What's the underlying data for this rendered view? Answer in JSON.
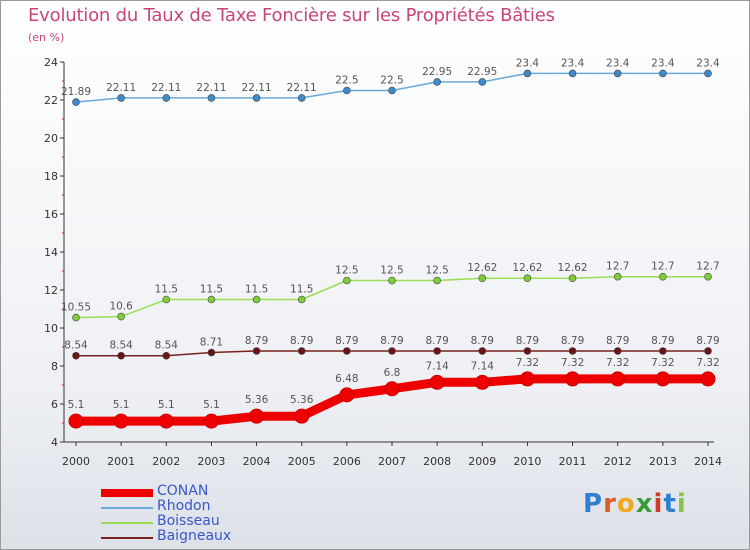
{
  "title": "Evolution du Taux de Taxe Foncière sur les Propriétés Bâties",
  "unit_label": "(en %)",
  "logo": {
    "text": "Proxiti",
    "letters": [
      {
        "ch": "P",
        "color": "#2f7fd1"
      },
      {
        "ch": "r",
        "color": "#e05a2a"
      },
      {
        "ch": "o",
        "color": "#f0a81c"
      },
      {
        "ch": "x",
        "color": "#3a9a3a"
      },
      {
        "ch": "i",
        "color": "#d23a2a"
      },
      {
        "ch": "t",
        "color": "#2f7fd1"
      },
      {
        "ch": "i",
        "color": "#8bc34a"
      }
    ]
  },
  "chart_data": {
    "type": "line",
    "title": "Evolution du Taux de Taxe Foncière sur les Propriétés Bâties",
    "ylabel": "(en %)",
    "xlabel": "",
    "x": [
      "2000",
      "2001",
      "2002",
      "2003",
      "2004",
      "2005",
      "2006",
      "2007",
      "2008",
      "2009",
      "2010",
      "2011",
      "2012",
      "2013",
      "2014"
    ],
    "ylim": [
      4,
      24
    ],
    "yticks": [
      "4",
      "6",
      "8",
      "10",
      "12",
      "14",
      "16",
      "18",
      "20",
      "22",
      "24"
    ],
    "grid": false,
    "legend_position": "bottom-left",
    "series": [
      {
        "name": "CONAN",
        "color": "#ee0000",
        "values": [
          5.1,
          5.1,
          5.1,
          5.1,
          5.36,
          5.36,
          6.48,
          6.8,
          7.14,
          7.14,
          7.32,
          7.32,
          7.32,
          7.32,
          7.32
        ],
        "labels": [
          "5.1",
          "5.1",
          "5.1",
          "5.1",
          "5.36",
          "5.36",
          "6.48",
          "6.8",
          "7.14",
          "7.14",
          "7.32",
          "7.32",
          "7.32",
          "7.32",
          "7.32"
        ]
      },
      {
        "name": "Rhodon",
        "color": "#6aaad8",
        "marker_color": "#3d8cc9",
        "values": [
          21.89,
          22.11,
          22.11,
          22.11,
          22.11,
          22.11,
          22.5,
          22.5,
          22.95,
          22.95,
          23.4,
          23.4,
          23.4,
          23.4,
          23.4
        ],
        "labels": [
          "21.89",
          "22.11",
          "22.11",
          "22.11",
          "22.11",
          "22.11",
          "22.5",
          "22.5",
          "22.95",
          "22.95",
          "23.4",
          "23.4",
          "23.4",
          "23.4",
          "23.4"
        ]
      },
      {
        "name": "Boisseau",
        "color": "#99dd55",
        "marker_color": "#7fcc3a",
        "values": [
          10.55,
          10.6,
          11.5,
          11.5,
          11.5,
          11.5,
          12.5,
          12.5,
          12.5,
          12.62,
          12.62,
          12.62,
          12.7,
          12.7,
          12.7
        ],
        "labels": [
          "10.55",
          "10.6",
          "11.5",
          "11.5",
          "11.5",
          "11.5",
          "12.5",
          "12.5",
          "12.5",
          "12.62",
          "12.62",
          "12.62",
          "12.7",
          "12.7",
          "12.7"
        ]
      },
      {
        "name": "Baigneaux",
        "color": "#7a2020",
        "marker_color": "#6a1515",
        "values": [
          8.54,
          8.54,
          8.54,
          8.71,
          8.79,
          8.79,
          8.79,
          8.79,
          8.79,
          8.79,
          8.79,
          8.79,
          8.79,
          8.79,
          8.79
        ],
        "labels": [
          "8.54",
          "8.54",
          "8.54",
          "8.71",
          "8.79",
          "8.79",
          "8.79",
          "8.79",
          "8.79",
          "8.79",
          "8.79",
          "8.79",
          "8.79",
          "8.79",
          "8.79"
        ]
      }
    ]
  }
}
